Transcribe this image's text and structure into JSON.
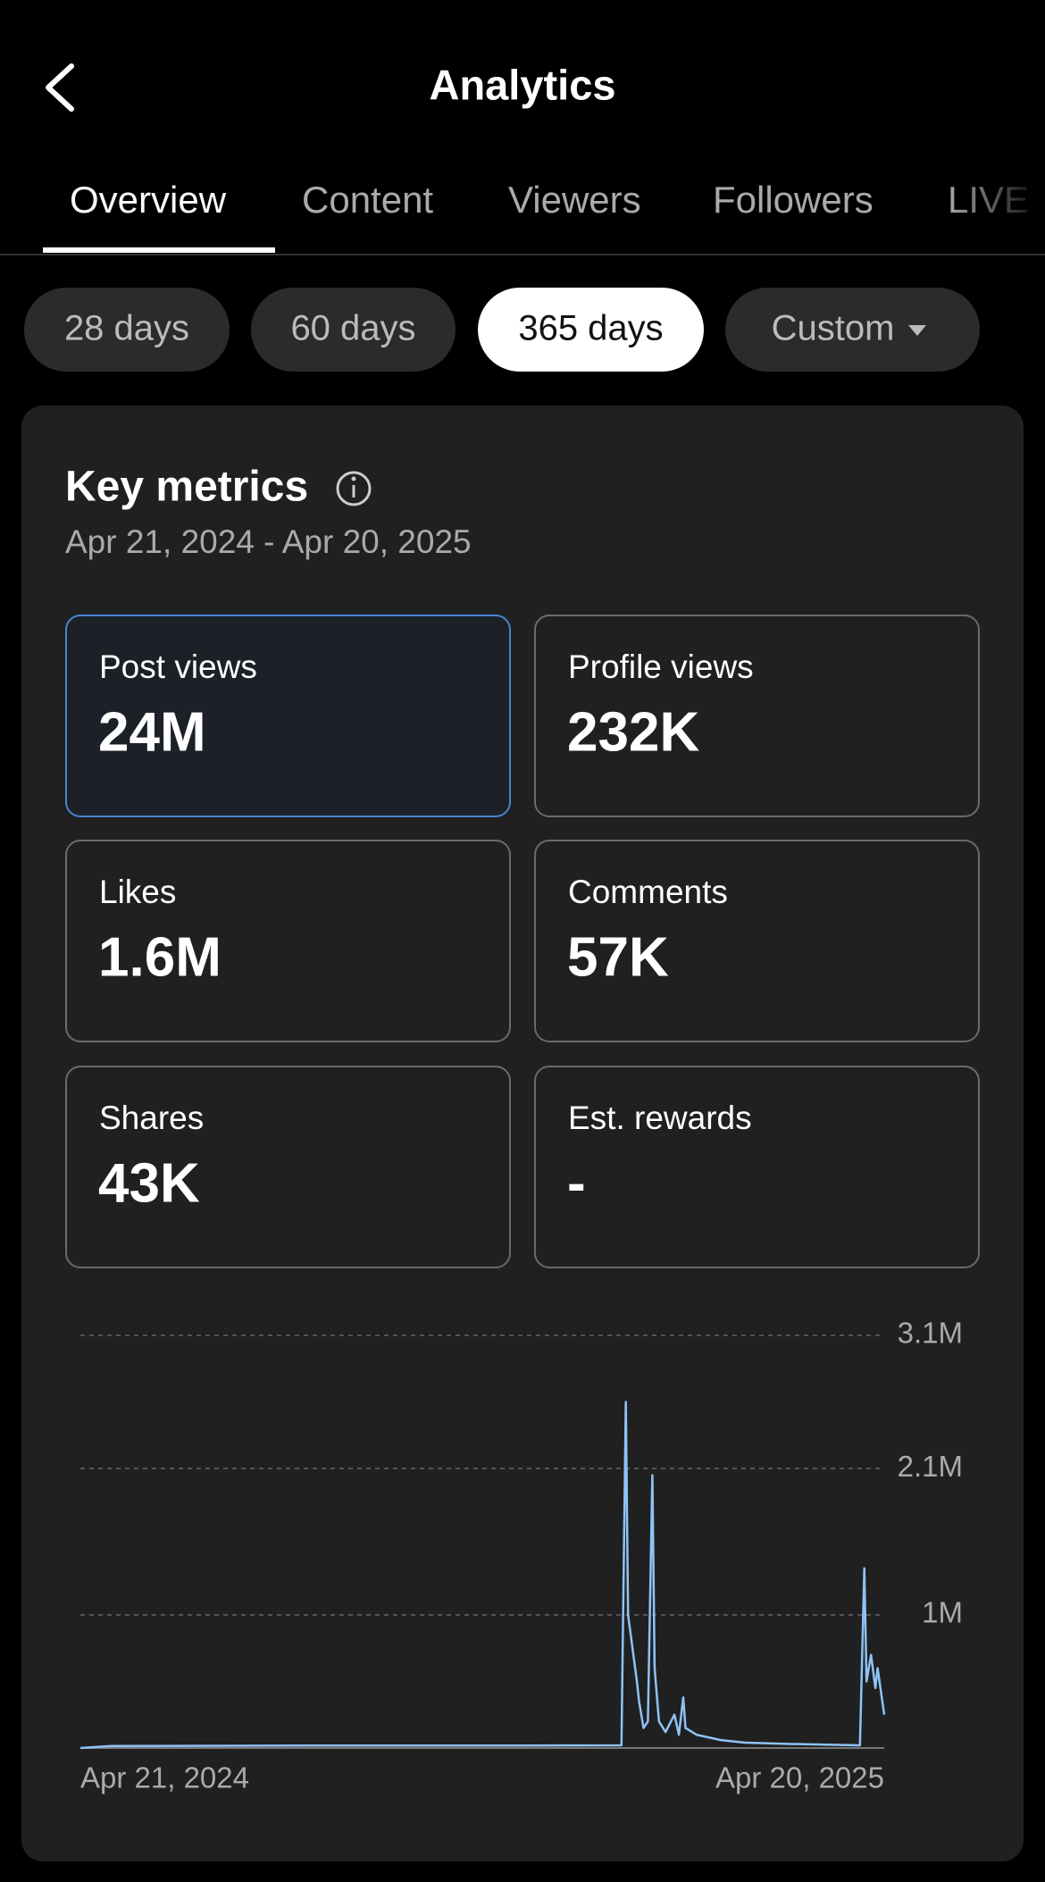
{
  "header": {
    "title": "Analytics"
  },
  "tabs": [
    "Overview",
    "Content",
    "Viewers",
    "Followers",
    "LIVE"
  ],
  "date_filters": [
    "28 days",
    "60 days",
    "365 days",
    "Custom"
  ],
  "key_metrics": {
    "title": "Key metrics",
    "date_range": "Apr 21, 2024 - Apr 20, 2025",
    "metrics": [
      {
        "label": "Post views",
        "value": "24M"
      },
      {
        "label": "Profile views",
        "value": "232K"
      },
      {
        "label": "Likes",
        "value": "1.6M"
      },
      {
        "label": "Comments",
        "value": "57K"
      },
      {
        "label": "Shares",
        "value": "43K"
      },
      {
        "label": "Est. rewards",
        "value": "-"
      }
    ]
  },
  "chart_data": {
    "type": "line",
    "x": [
      0,
      14,
      100,
      200,
      245,
      247,
      248,
      252,
      253,
      255,
      257,
      259,
      260,
      262,
      265,
      269,
      271,
      273,
      274,
      279,
      290,
      301,
      322,
      353,
      355,
      356,
      358,
      360,
      361,
      364
    ],
    "series": [
      {
        "color": "#8ec3f5",
        "values": [
          0,
          15000,
          18000,
          18000,
          20000,
          2600000,
          1000000,
          500000,
          350000,
          150000,
          200000,
          2050000,
          600000,
          200000,
          120000,
          250000,
          100000,
          380000,
          150000,
          100000,
          60000,
          40000,
          30000,
          20000,
          1350000,
          500000,
          700000,
          450000,
          600000,
          250000
        ]
      }
    ],
    "xlim": [
      0,
      364
    ],
    "xticks": [
      {
        "value": 0,
        "label": "Apr 21, 2024"
      },
      {
        "value": 364,
        "label": "Apr 20, 2025"
      }
    ],
    "ylim": [
      0,
      3100000
    ],
    "yticks": [
      {
        "value": 1000000,
        "label": "1M"
      },
      {
        "value": 2100000,
        "label": "2.1M"
      },
      {
        "value": 3100000,
        "label": "3.1M"
      }
    ],
    "grid": true
  }
}
